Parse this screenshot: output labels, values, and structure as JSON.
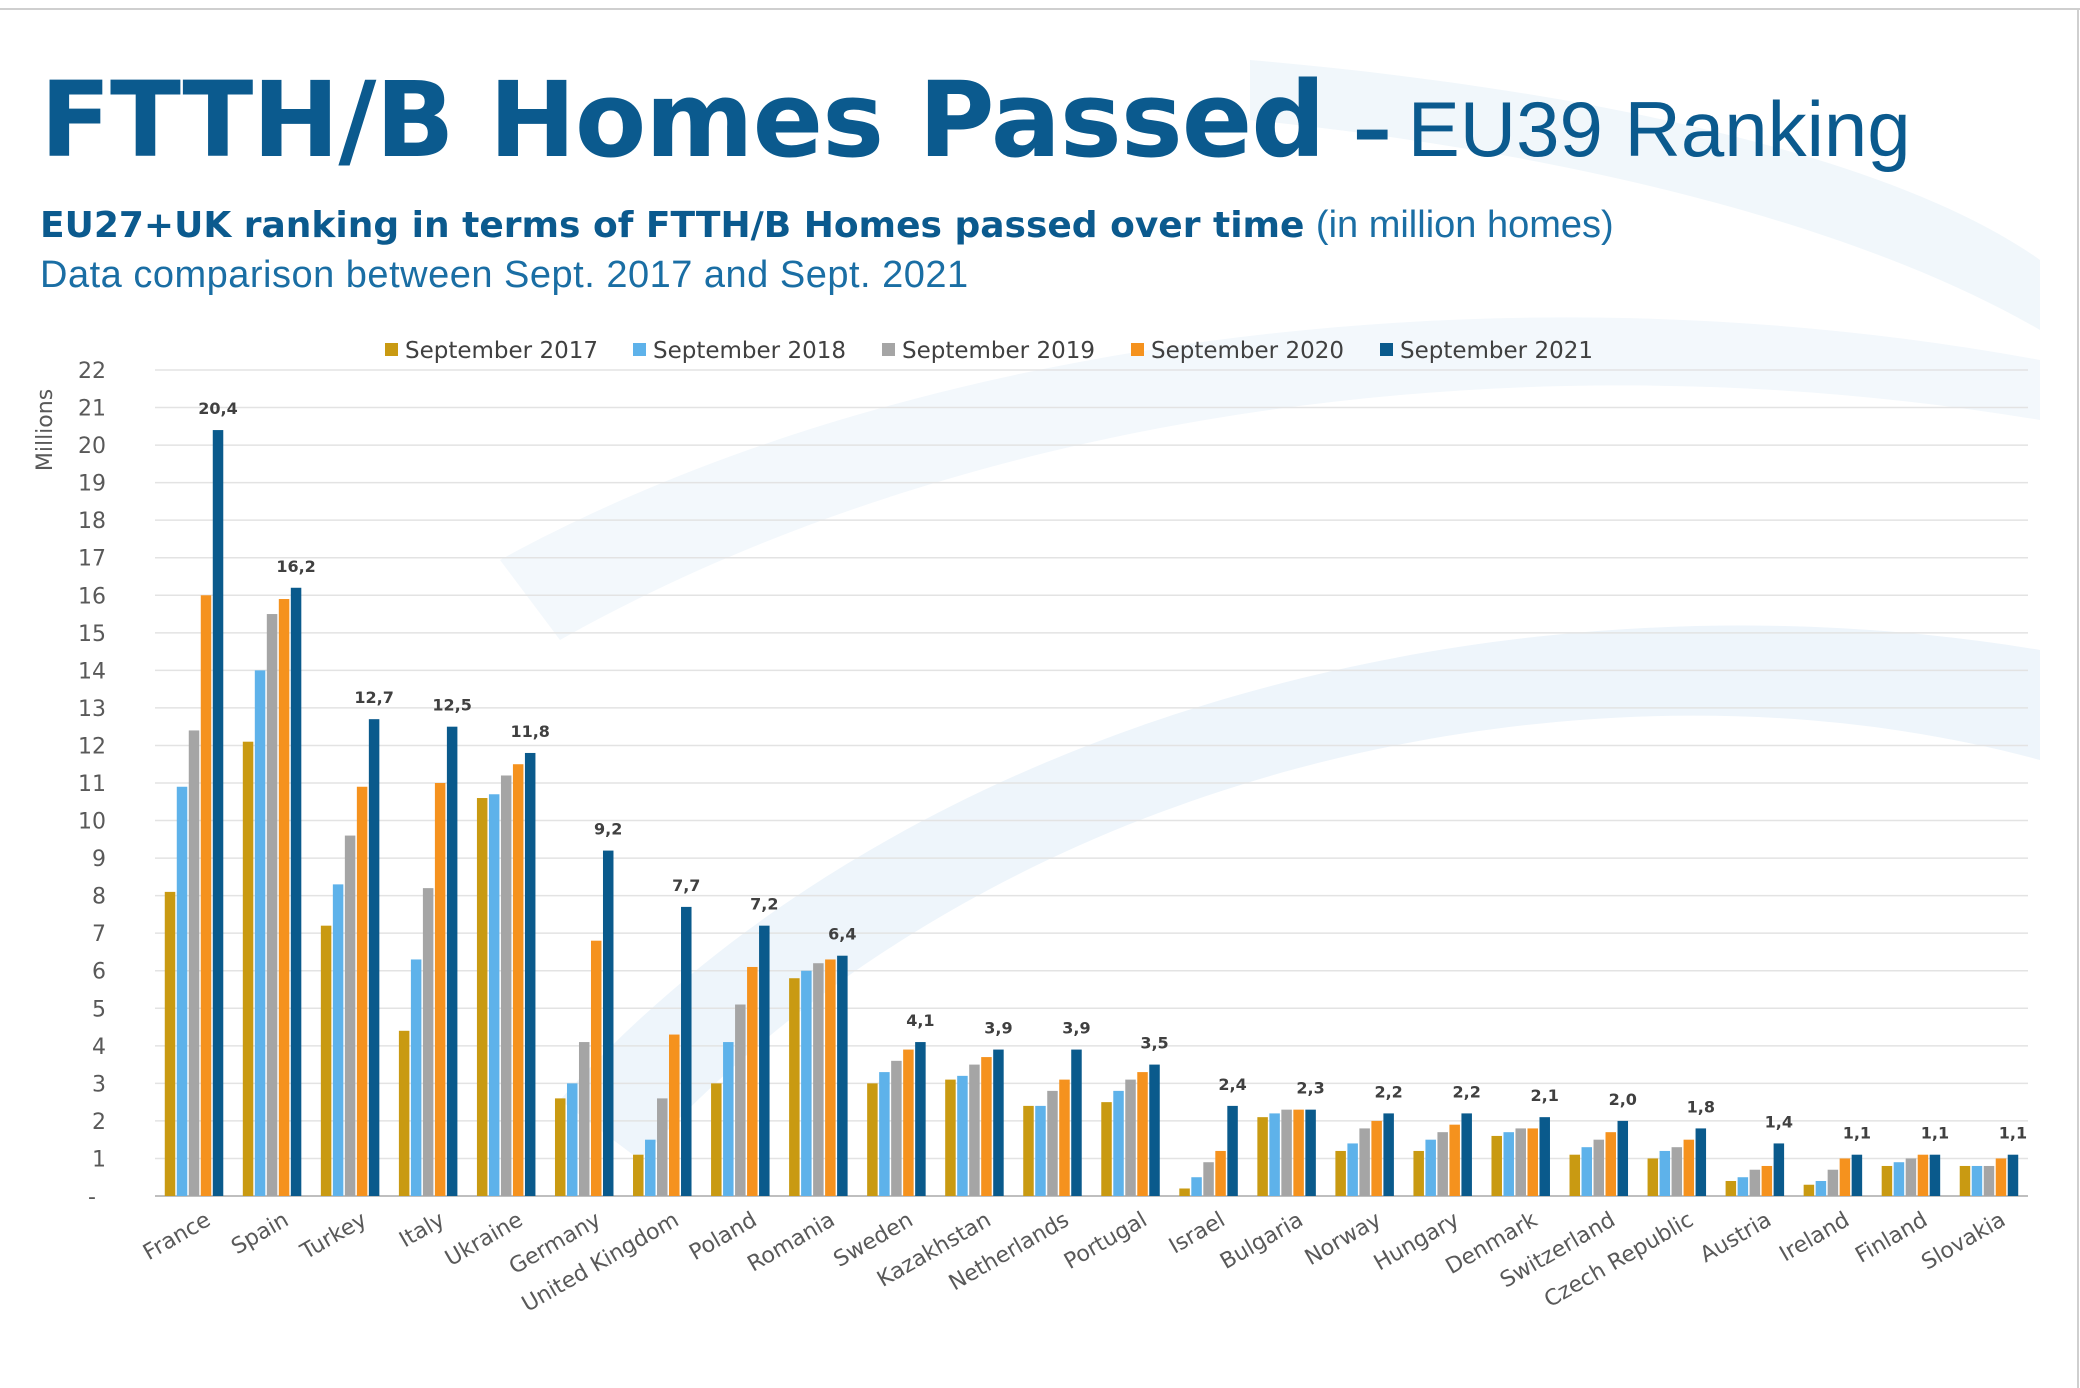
{
  "header": {
    "title_main": "FTTH/B Homes Passed",
    "title_sep": "–",
    "title_rank": "EU39 Ranking",
    "subtitle_bold": "EU27+UK ranking in terms of FTTH/B Homes passed over time",
    "subtitle_unit": "(in million homes)",
    "subtitle2": "Data comparison between Sept. 2017 and Sept. 2021"
  },
  "colors": {
    "sep2017": "#c99a12",
    "sep2018": "#5eb2ea",
    "sep2019": "#a5a5a5",
    "sep2020": "#f5921e",
    "sep2021": "#0a5a8c"
  },
  "chart_data": {
    "type": "bar",
    "ylabel": "Millions",
    "ylim": [
      0,
      22
    ],
    "yticks": [
      1,
      2,
      3,
      4,
      5,
      6,
      7,
      8,
      9,
      10,
      11,
      12,
      13,
      14,
      15,
      16,
      17,
      18,
      19,
      20,
      21,
      22
    ],
    "zero_label": "-",
    "grid": true,
    "legend_position": "top",
    "categories": [
      "France",
      "Spain",
      "Turkey",
      "Italy",
      "Ukraine",
      "Germany",
      "United Kingdom",
      "Poland",
      "Romania",
      "Sweden",
      "Kazakhstan",
      "Netherlands",
      "Portugal",
      "Israel",
      "Bulgaria",
      "Norway",
      "Hungary",
      "Denmark",
      "Switzerland",
      "Czech Republic",
      "Austria",
      "Ireland",
      "Finland",
      "Slovakia"
    ],
    "series": [
      {
        "name": "September 2017",
        "values": [
          8.1,
          12.1,
          7.2,
          4.4,
          10.6,
          2.6,
          1.1,
          3.0,
          5.8,
          3.0,
          3.1,
          2.4,
          2.5,
          0.2,
          2.1,
          1.2,
          1.2,
          1.6,
          1.1,
          1.0,
          0.4,
          0.3,
          0.8,
          0.8
        ]
      },
      {
        "name": "September 2018",
        "values": [
          10.9,
          14.0,
          8.3,
          6.3,
          10.7,
          3.0,
          1.5,
          4.1,
          6.0,
          3.3,
          3.2,
          2.4,
          2.8,
          0.5,
          2.2,
          1.4,
          1.5,
          1.7,
          1.3,
          1.2,
          0.5,
          0.4,
          0.9,
          0.8
        ]
      },
      {
        "name": "September 2019",
        "values": [
          12.4,
          15.5,
          9.6,
          8.2,
          11.2,
          4.1,
          2.6,
          5.1,
          6.2,
          3.6,
          3.5,
          2.8,
          3.1,
          0.9,
          2.3,
          1.8,
          1.7,
          1.8,
          1.5,
          1.3,
          0.7,
          0.7,
          1.0,
          0.8
        ]
      },
      {
        "name": "September 2020",
        "values": [
          16.0,
          15.9,
          10.9,
          11.0,
          11.5,
          6.8,
          4.3,
          6.1,
          6.3,
          3.9,
          3.7,
          3.1,
          3.3,
          1.2,
          2.3,
          2.0,
          1.9,
          1.8,
          1.7,
          1.5,
          0.8,
          1.0,
          1.1,
          1.0
        ]
      },
      {
        "name": "September 2021",
        "values": [
          20.4,
          16.2,
          12.7,
          12.5,
          11.8,
          9.2,
          7.7,
          7.2,
          6.4,
          4.1,
          3.9,
          3.9,
          3.5,
          2.4,
          2.3,
          2.2,
          2.2,
          2.1,
          2.0,
          1.8,
          1.4,
          1.1,
          1.1,
          1.1
        ]
      }
    ],
    "data_labels": [
      "20,4",
      "16,2",
      "12,7",
      "12,5",
      "11,8",
      "9,2",
      "7,7",
      "7,2",
      "6,4",
      "4,1",
      "3,9",
      "3,9",
      "3,5",
      "2,4",
      "2,3",
      "2,2",
      "2,2",
      "2,1",
      "2,0",
      "1,8",
      "1,4",
      "1,1",
      "1,1",
      "1,1"
    ]
  }
}
